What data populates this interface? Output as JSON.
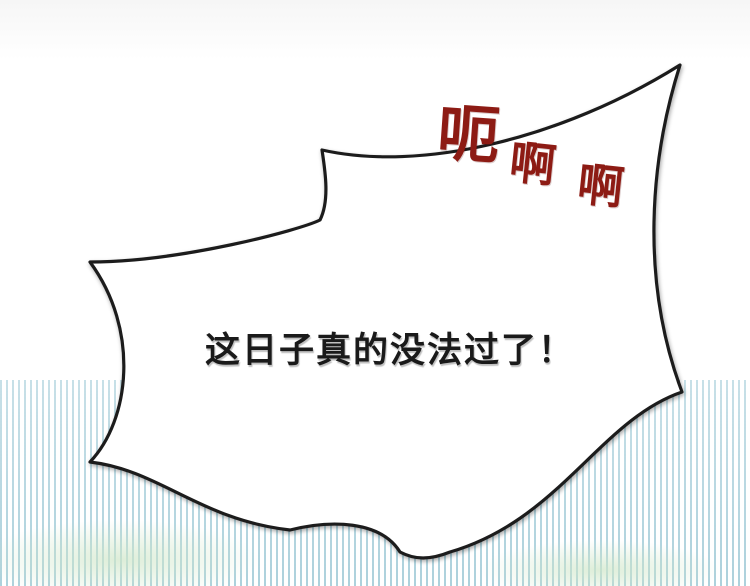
{
  "sfx": {
    "first": "呃",
    "second": "啊",
    "third": "啊"
  },
  "dialogue": {
    "text": "这日子真的没法过了！"
  },
  "colors": {
    "sfx": "#8d1b14",
    "bubble_outline": "#1e1e1e",
    "stripe": "#9ec9d6"
  }
}
